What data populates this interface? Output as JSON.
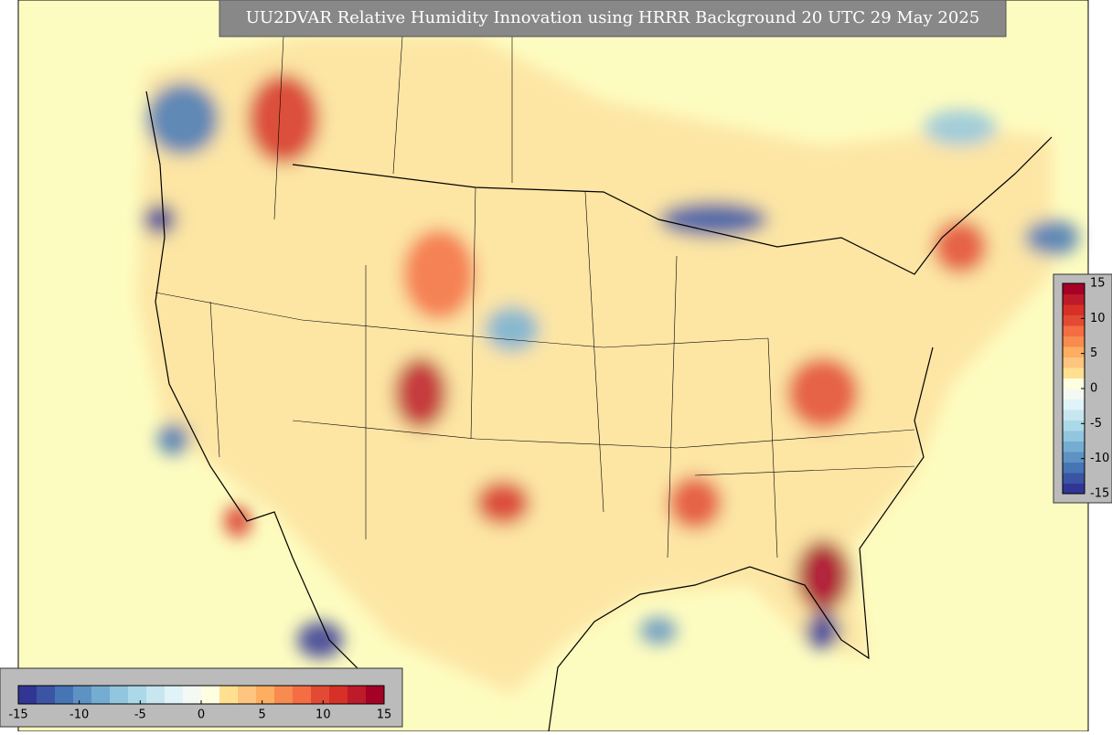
{
  "title": "UU2DVAR Relative Humidity Innovation using HRRR Background 20 UTC 29 May 2025",
  "colorbar": {
    "range": [
      -15,
      15
    ],
    "ticks": [
      -15,
      -10,
      -5,
      0,
      5,
      10,
      15
    ],
    "colors": [
      "#313695",
      "#3b54a4",
      "#4575b4",
      "#5e92c3",
      "#74add1",
      "#92c5de",
      "#abd9e9",
      "#c7e6f0",
      "#e0f3f8",
      "#f4f9f4",
      "#fefee0",
      "#fee090",
      "#fdc57f",
      "#fdae61",
      "#f88b4f",
      "#f46d43",
      "#e34a33",
      "#d73027",
      "#bd1a2a",
      "#a50026"
    ]
  }
}
